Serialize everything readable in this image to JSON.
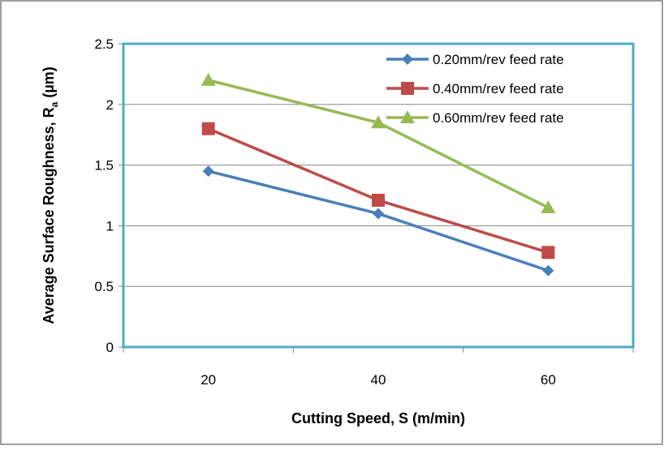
{
  "chart_data": {
    "type": "line",
    "x": [
      20,
      40,
      60
    ],
    "xticks": [
      "20",
      "40",
      "60"
    ],
    "yticks": [
      "0",
      "0.5",
      "1",
      "1.5",
      "2",
      "2.5"
    ],
    "ylim": [
      0,
      2.5
    ],
    "xlabel": "Cutting Speed,  S (m/min)",
    "ylabel_main": "Average Surface Roughness, R",
    "ylabel_sub": "a",
    "ylabel_unit": " (µm)",
    "grid": true,
    "legend_position": "top-right",
    "series": [
      {
        "name": "0.20mm/rev feed rate",
        "color": "#4a7ebb",
        "marker": "diamond",
        "values": [
          1.45,
          1.1,
          0.63
        ]
      },
      {
        "name": "0.40mm/rev feed rate",
        "color": "#be4b48",
        "marker": "square",
        "values": [
          1.8,
          1.21,
          0.78
        ]
      },
      {
        "name": "0.60mm/rev feed rate",
        "color": "#98b954",
        "marker": "triangle",
        "values": [
          2.2,
          1.85,
          1.15
        ]
      }
    ],
    "colors": {
      "plot_border": "#4bacc6",
      "grid": "#868686",
      "frame": "#7f7f7f"
    }
  }
}
